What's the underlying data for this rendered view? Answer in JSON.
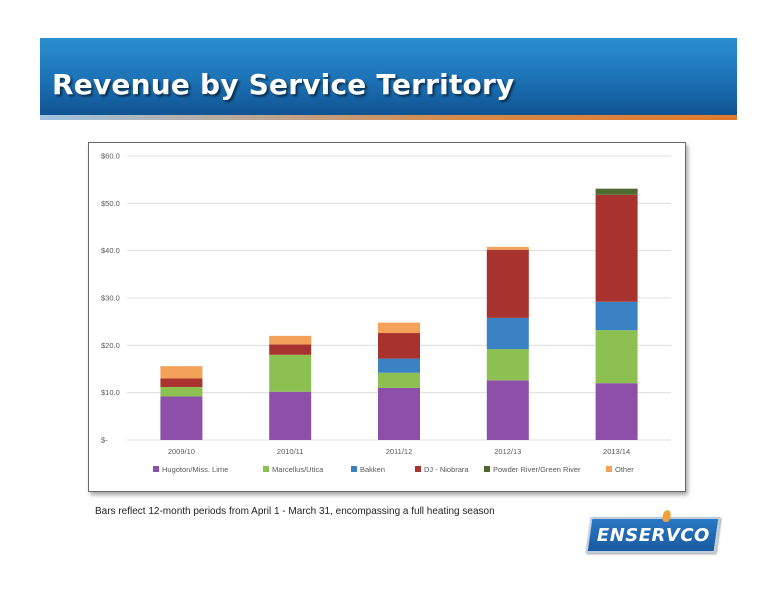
{
  "header": {
    "title": "Revenue by Service Territory"
  },
  "footnote": "Bars reflect 12-month periods from April 1 - March 31, encompassing a full heating season",
  "logo": {
    "text": "ENSERVCO"
  },
  "chart_data": {
    "type": "bar",
    "stacked": true,
    "categories": [
      "2009/10",
      "2010/11",
      "2011/12",
      "2012/13",
      "2013/14"
    ],
    "ylim": [
      0,
      60
    ],
    "yticks": [
      0,
      10,
      20,
      30,
      40,
      50,
      60
    ],
    "ytick_labels": [
      "$-",
      "$10.0",
      "$20.0",
      "$30.0",
      "$40.0",
      "$50.0",
      "$60.0"
    ],
    "grid": true,
    "legend_position": "bottom",
    "series": [
      {
        "name": "Hugoton/Miss. Lime",
        "color": "#8e4fa8",
        "values": [
          9.2,
          10.2,
          11.0,
          12.6,
          12.0
        ]
      },
      {
        "name": "Marcellus/Utica",
        "color": "#8cc152",
        "values": [
          2.0,
          7.8,
          3.2,
          6.6,
          11.2
        ]
      },
      {
        "name": "Bakken",
        "color": "#3b82c4",
        "values": [
          0.0,
          0.0,
          3.0,
          6.6,
          6.0
        ]
      },
      {
        "name": "DJ - Niobrara",
        "color": "#a8322d",
        "values": [
          1.8,
          2.2,
          5.4,
          14.4,
          22.6
        ]
      },
      {
        "name": "Powder River/Green River",
        "color": "#4f6a2e",
        "values": [
          0.0,
          0.0,
          0.0,
          0.0,
          1.3
        ]
      },
      {
        "name": "Other",
        "color": "#f4a259",
        "values": [
          2.6,
          1.8,
          2.2,
          0.6,
          0.0
        ]
      }
    ]
  }
}
